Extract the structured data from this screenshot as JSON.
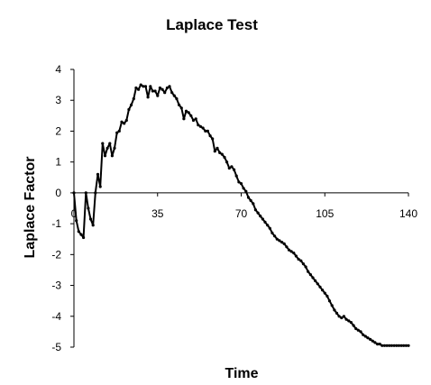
{
  "chart_data": {
    "type": "line",
    "title": "Laplace Test",
    "xlabel": "Time",
    "ylabel": "Laplace Factor",
    "xlim": [
      0,
      140
    ],
    "ylim": [
      -5,
      4
    ],
    "xticks": [
      0,
      35,
      70,
      105,
      140
    ],
    "xtick_labels": [
      "0",
      "35",
      "70",
      "105",
      "140"
    ],
    "yticks": [
      4,
      3,
      2,
      1,
      0,
      -1,
      -2,
      -3,
      -4,
      -5
    ],
    "ytick_labels": [
      "4",
      "3",
      "2",
      "1",
      "0",
      "-1",
      "-2",
      "-3",
      "-4",
      "-5"
    ],
    "grid": false,
    "legend": false,
    "series": [
      {
        "color": "#000000",
        "x": [
          0,
          1,
          2,
          3,
          4,
          5,
          6,
          7,
          8,
          9,
          10,
          11,
          12,
          13,
          14,
          15,
          16,
          17,
          18,
          19,
          20,
          21,
          22,
          23,
          24,
          25,
          26,
          27,
          28,
          29,
          30,
          31,
          32,
          33,
          34,
          35,
          36,
          37,
          38,
          39,
          40,
          41,
          42,
          43,
          44,
          45,
          46,
          47,
          48,
          49,
          50,
          51,
          52,
          53,
          54,
          55,
          56,
          57,
          58,
          59,
          60,
          61,
          62,
          63,
          64,
          65,
          66,
          67,
          68,
          69,
          70,
          71,
          72,
          73,
          74,
          75,
          76,
          77,
          78,
          79,
          80,
          81,
          82,
          83,
          84,
          85,
          86,
          87,
          88,
          89,
          90,
          91,
          92,
          93,
          94,
          95,
          96,
          97,
          98,
          99,
          100,
          101,
          102,
          103,
          104,
          105,
          106,
          107,
          108,
          109,
          110,
          111,
          112,
          113,
          114,
          115,
          116,
          117,
          118,
          119,
          120,
          121,
          122,
          123,
          124,
          125,
          126,
          127,
          128,
          129,
          130,
          131,
          132,
          133,
          134,
          135,
          136,
          137,
          138,
          139,
          140
        ],
        "y": [
          0.0,
          -0.9,
          -1.25,
          -1.35,
          -1.45,
          0.0,
          -0.5,
          -0.85,
          -1.05,
          0.0,
          0.6,
          0.2,
          1.6,
          1.2,
          1.45,
          1.6,
          1.2,
          1.45,
          1.95,
          2.0,
          2.3,
          2.25,
          2.35,
          2.7,
          2.85,
          3.05,
          3.4,
          3.35,
          3.5,
          3.45,
          3.45,
          3.1,
          3.45,
          3.3,
          3.3,
          3.15,
          3.4,
          3.35,
          3.25,
          3.4,
          3.45,
          3.25,
          3.15,
          3.05,
          2.85,
          2.75,
          2.4,
          2.65,
          2.6,
          2.5,
          2.35,
          2.4,
          2.2,
          2.15,
          2.1,
          2.0,
          2.0,
          1.85,
          1.75,
          1.35,
          1.45,
          1.3,
          1.25,
          1.15,
          1.0,
          0.8,
          0.85,
          0.75,
          0.55,
          0.35,
          0.3,
          0.15,
          0.05,
          -0.15,
          -0.25,
          -0.35,
          -0.55,
          -0.65,
          -0.75,
          -0.85,
          -0.95,
          -1.05,
          -1.15,
          -1.3,
          -1.4,
          -1.5,
          -1.55,
          -1.6,
          -1.65,
          -1.75,
          -1.85,
          -1.9,
          -1.95,
          -2.05,
          -2.15,
          -2.2,
          -2.3,
          -2.4,
          -2.55,
          -2.65,
          -2.75,
          -2.85,
          -2.95,
          -3.05,
          -3.15,
          -3.25,
          -3.35,
          -3.5,
          -3.65,
          -3.8,
          -3.9,
          -4.0,
          -4.05,
          -4.0,
          -4.1,
          -4.15,
          -4.2,
          -4.3,
          -4.4,
          -4.45,
          -4.5,
          -4.6,
          -4.65,
          -4.7,
          -4.75,
          -4.8,
          -4.85,
          -4.9,
          -4.9,
          -4.95,
          -4.95,
          -4.95,
          -4.95,
          -4.95,
          -4.95,
          -4.95,
          -4.95,
          -4.95,
          -4.95,
          -4.95,
          -4.95
        ]
      }
    ]
  }
}
